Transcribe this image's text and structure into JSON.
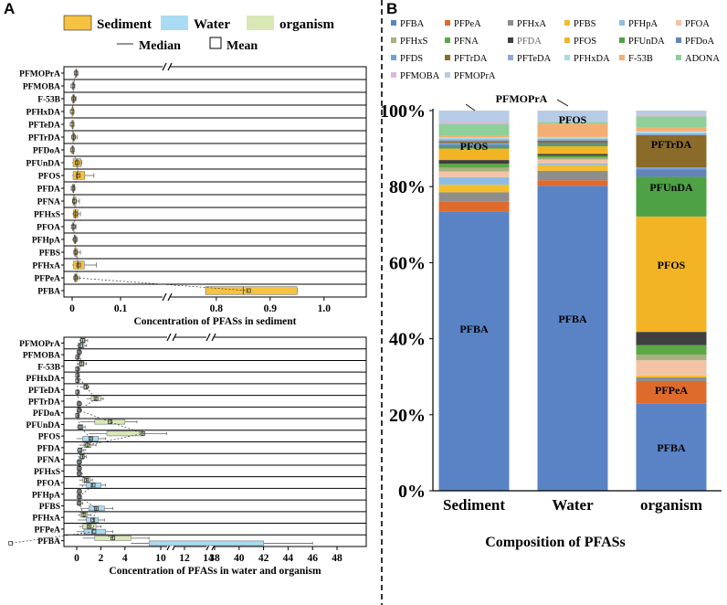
{
  "figure": {
    "panel_a_label": "A",
    "panel_b_label": "B"
  },
  "colors": {
    "sediment": "#f5c242",
    "water": "#a9dcf2",
    "organism": "#d9e8b5"
  },
  "legend_a": {
    "sediment": "Sediment",
    "water": "Water",
    "organism": "organism",
    "median": "Median",
    "mean": "Mean"
  },
  "chart_data": [
    {
      "id": "A_top",
      "type": "boxplot",
      "orientation": "horizontal",
      "xlabel": "Concentration of PFASs in sediment",
      "axis_break": [
        0.1,
        0.75
      ],
      "xticks": [
        "0",
        "0.1",
        "0.8",
        "0.9",
        "1.0"
      ],
      "categories": [
        "PFMOPrA",
        "PFMOBA",
        "F-53B",
        "PFHxDA",
        "PFTeDA",
        "PFTrDA",
        "PFDoA",
        "PFUnDA",
        "PFOS",
        "PFDA",
        "PFNA",
        "PFHxS",
        "PFOA",
        "PFHpA",
        "PFBS",
        "PFHxA",
        "PFPeA",
        "PFBA"
      ],
      "series": [
        {
          "name": "Sediment",
          "boxes": [
            [
              0.006,
              0.007,
              0.008,
              0.009,
              0.01
            ],
            [
              0.001,
              0.001,
              0.002,
              0.002,
              0.003
            ],
            [
              0.0,
              0.001,
              0.003,
              0.005,
              0.008
            ],
            [
              0.0,
              0.0,
              0.0,
              0.0,
              0.001
            ],
            [
              0.0,
              0.0,
              0.0,
              0.0,
              0.0
            ],
            [
              0.0,
              0.001,
              0.003,
              0.005,
              0.01
            ],
            [
              0.0,
              0.0,
              0.0,
              0.001,
              0.004
            ],
            [
              0.0,
              0.002,
              0.01,
              0.018,
              0.02
            ],
            [
              0.0,
              0.002,
              0.01,
              0.026,
              0.045
            ],
            [
              0.0,
              0.001,
              0.002,
              0.003,
              0.005
            ],
            [
              0.0,
              0.002,
              0.004,
              0.008,
              0.015
            ],
            [
              0.0,
              0.003,
              0.007,
              0.012,
              0.017
            ],
            [
              0.0,
              0.001,
              0.002,
              0.004,
              0.008
            ],
            [
              0.0,
              0.004,
              0.006,
              0.008,
              0.01
            ],
            [
              0.003,
              0.005,
              0.007,
              0.01,
              0.017
            ],
            [
              0.0,
              0.003,
              0.012,
              0.025,
              0.05
            ],
            [
              0.003,
              0.005,
              0.007,
              0.01,
              0.015
            ],
            [
              0.78,
              0.78,
              0.85,
              0.95,
              0.95
            ]
          ]
        }
      ]
    },
    {
      "id": "A_bottom",
      "type": "boxplot",
      "orientation": "horizontal",
      "xlabel": "Concentration of PFASs in water and organism",
      "axis_breaks": [
        [
          7,
          8
        ],
        [
          14,
          30
        ]
      ],
      "xticks": [
        "0",
        "2",
        "4",
        "10",
        "12",
        "14",
        "38",
        "40",
        "42",
        "44",
        "46",
        "48"
      ],
      "categories": [
        "PFMOPrA",
        "PFMOBA",
        "F-53B",
        "PFHxDA",
        "PFTeDA",
        "PFTrDA",
        "PFDoA",
        "PFUnDA",
        "PFOS",
        "PFDA",
        "PFNA",
        "PFHxS",
        "PFOA",
        "PFHpA",
        "PFBS",
        "PFHxA",
        "PFPeA",
        "PFBA"
      ],
      "series": [
        {
          "name": "organism",
          "boxes": [
            [
              0.2,
              0.3,
              0.5,
              0.7,
              0.9
            ],
            [
              0.0,
              0.1,
              0.2,
              0.3,
              0.4
            ],
            [
              0.0,
              0.2,
              0.4,
              0.6,
              0.8
            ],
            [
              0.0,
              0.0,
              0.1,
              0.1,
              0.2
            ],
            [
              0.3,
              0.6,
              0.8,
              0.9,
              1.0
            ],
            [
              0.8,
              1.2,
              1.6,
              2.0,
              2.2
            ],
            [
              0.0,
              0.1,
              0.2,
              0.3,
              0.4
            ],
            [
              0.3,
              1.5,
              2.8,
              4.0,
              5.0
            ],
            [
              1.0,
              2.5,
              5.5,
              8.5,
              10.5
            ],
            [
              0.2,
              0.6,
              0.9,
              1.2,
              1.6
            ],
            [
              0.1,
              0.3,
              0.5,
              0.6,
              0.8
            ],
            [
              0.0,
              0.1,
              0.2,
              0.3,
              0.4
            ],
            [
              0.2,
              0.5,
              0.8,
              1.1,
              1.3
            ],
            [
              0.0,
              0.1,
              0.2,
              0.3,
              0.4
            ],
            [
              0.0,
              0.1,
              0.2,
              0.3,
              0.5
            ],
            [
              0.1,
              0.3,
              0.6,
              0.9,
              1.2
            ],
            [
              0.2,
              0.5,
              1.0,
              1.6,
              2.0
            ],
            [
              0.5,
              1.5,
              3.0,
              4.5,
              6.0
            ]
          ]
        },
        {
          "name": "Water",
          "boxes": [
            [
              0.0,
              0.1,
              0.3,
              0.6,
              0.8
            ],
            [
              0.0,
              0.0,
              0.1,
              0.1,
              0.2
            ],
            [
              0.0,
              0.0,
              0.1,
              0.1,
              0.2
            ],
            [
              0.0,
              0.0,
              0.1,
              0.1,
              0.2
            ],
            [
              0.0,
              0.0,
              0.1,
              0.1,
              0.2
            ],
            [
              0.0,
              0.1,
              0.2,
              0.3,
              0.4
            ],
            [
              0.0,
              0.0,
              0.1,
              0.1,
              0.2
            ],
            [
              0.0,
              0.1,
              0.3,
              0.5,
              0.7
            ],
            [
              0.0,
              0.5,
              1.2,
              1.8,
              2.4
            ],
            [
              0.0,
              0.1,
              0.3,
              0.4,
              0.6
            ],
            [
              0.0,
              0.1,
              0.2,
              0.3,
              0.4
            ],
            [
              0.0,
              0.1,
              0.2,
              0.3,
              0.4
            ],
            [
              0.2,
              0.8,
              1.3,
              2.0,
              2.4
            ],
            [
              0.0,
              0.1,
              0.2,
              0.3,
              0.4
            ],
            [
              0.3,
              1.0,
              1.6,
              2.3,
              3.0
            ],
            [
              0.1,
              0.8,
              1.4,
              1.8,
              2.3
            ],
            [
              0.0,
              0.6,
              1.3,
              2.4,
              3.0
            ],
            [
              4.5,
              6.0,
              16.0,
              42.0,
              46.0
            ]
          ]
        }
      ]
    },
    {
      "id": "B",
      "type": "stacked_bar_percent",
      "xlabel": "Composition of PFASs",
      "ylabel": "",
      "ylim": [
        0,
        100
      ],
      "yticks": [
        "0%",
        "20%",
        "40%",
        "60%",
        "80%",
        "100%"
      ],
      "categories": [
        "Sediment",
        "Water",
        "organism"
      ],
      "series": [
        {
          "name": "PFBA",
          "color": "#5a83c5",
          "values": [
            73.5,
            81.0,
            23.0
          ]
        },
        {
          "name": "PFPeA",
          "color": "#de6b2b",
          "values": [
            2.5,
            1.5,
            6.0
          ]
        },
        {
          "name": "PFHxA",
          "color": "#8e8e8e",
          "values": [
            2.5,
            2.5,
            1.0
          ]
        },
        {
          "name": "PFBS",
          "color": "#f3bd2c",
          "values": [
            2.0,
            1.5,
            0.5
          ]
        },
        {
          "name": "PFHpA",
          "color": "#8ebde4",
          "values": [
            2.0,
            0.5,
            0.0
          ]
        },
        {
          "name": "PFOA",
          "color": "#f3c3a5",
          "values": [
            1.5,
            1.0,
            4.0
          ]
        },
        {
          "name": "PFHxS",
          "color": "#a8b07f",
          "values": [
            1.0,
            0.5,
            1.5
          ]
        },
        {
          "name": "PFNA",
          "color": "#5aa845",
          "values": [
            1.0,
            0.5,
            2.5
          ]
        },
        {
          "name": "PFDA",
          "color": "#3f3f3f",
          "values": [
            1.0,
            0.5,
            3.5
          ]
        },
        {
          "name": "PFOS",
          "color": "#f2b424",
          "values": [
            3.0,
            2.0,
            30.5
          ]
        },
        {
          "name": "PFUnDA",
          "color": "#4ea245",
          "values": [
            0.5,
            0.5,
            10.5
          ]
        },
        {
          "name": "PFDoA",
          "color": "#6582b8",
          "values": [
            0.5,
            0.5,
            2.0
          ]
        },
        {
          "name": "PFDS",
          "color": "#6ea3d6",
          "values": [
            0.5,
            0.0,
            0.5
          ]
        },
        {
          "name": "PFTrDA",
          "color": "#8a6b2a",
          "values": [
            0.5,
            0.5,
            8.5
          ]
        },
        {
          "name": "PFTeDA",
          "color": "#8fa8d6",
          "values": [
            0.5,
            0.5,
            0.5
          ]
        },
        {
          "name": "PFHxDA",
          "color": "#a8dce6",
          "values": [
            0.5,
            0.5,
            0.5
          ]
        },
        {
          "name": "F-53B",
          "color": "#f4ad72",
          "values": [
            0.5,
            3.5,
            1.0
          ]
        },
        {
          "name": "ADONA",
          "color": "#8fcf9a",
          "values": [
            3.0,
            0.5,
            3.0
          ]
        },
        {
          "name": "PFMOBA",
          "color": "#d9b8dc",
          "values": [
            0.5,
            0.0,
            0.5
          ]
        },
        {
          "name": "PFMOPrA",
          "color": "#b7cbe6",
          "values": [
            3.0,
            3.0,
            1.0
          ]
        }
      ],
      "bar_labels": {
        "sediment_pfba": "PFBA",
        "sediment_pfos": "PFOS",
        "water_pfba": "PFBA",
        "water_pfos": "PFOS",
        "organism_pfba": "PFBA",
        "organism_pfpea": "PFPeA",
        "organism_pfos": "PFOS",
        "organism_pfunda": "PFUnDA",
        "organism_pftrda": "PFTrDA"
      },
      "callout": "PFMOPrA"
    }
  ]
}
